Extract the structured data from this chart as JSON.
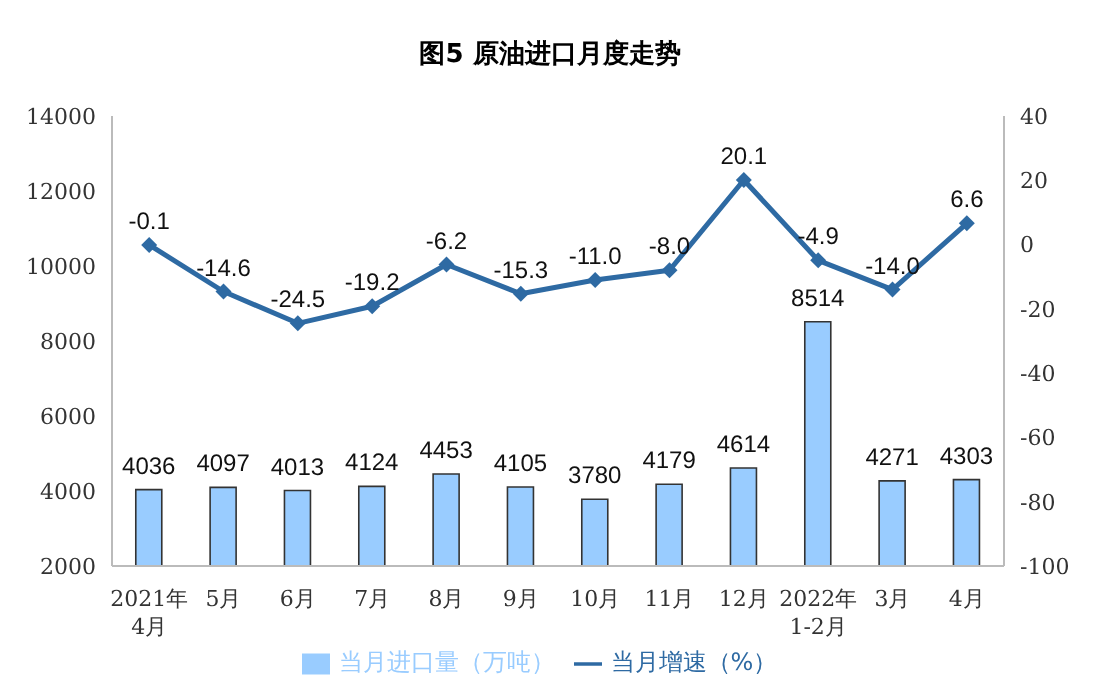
{
  "chart_data": {
    "type": "bar",
    "title": "图5  原油进口月度走势",
    "categories": [
      "2021年\n4月",
      "5月",
      "6月",
      "7月",
      "8月",
      "9月",
      "10月",
      "11月",
      "12月",
      "2022年\n1-2月",
      "3月",
      "4月"
    ],
    "series": [
      {
        "name": "当月进口量（万吨）",
        "color": "#99ccff",
        "values": [
          4036,
          4097,
          4013,
          4124,
          4453,
          4105,
          3780,
          4179,
          4614,
          8514,
          4271,
          4303
        ],
        "value_labels": [
          "4036",
          "4097",
          "4013",
          "4124",
          "4453",
          "4105",
          "3780",
          "4179",
          "4614",
          "8514",
          "4271",
          "4303"
        ]
      },
      {
        "name": "当月增速（%）",
        "type": "line",
        "axis": "y2",
        "color": "#2e6aa3",
        "values": [
          -0.1,
          -14.6,
          -24.5,
          -19.2,
          -6.2,
          -15.3,
          -11.0,
          -8.0,
          20.1,
          -4.9,
          -14.0,
          6.6
        ],
        "value_labels": [
          "-0.1",
          "-14.6",
          "-24.5",
          "-19.2",
          "-6.2",
          "-15.3",
          "-11.0",
          "-8.0",
          "20.1",
          "-4.9",
          "-14.0",
          "6.6"
        ]
      }
    ],
    "ylim": [
      2000,
      14000
    ],
    "yticks": [
      2000,
      4000,
      6000,
      8000,
      10000,
      12000,
      14000
    ],
    "y2lim": [
      -100,
      40
    ],
    "y2ticks": [
      -100,
      -80,
      -60,
      -40,
      -20,
      0,
      20,
      40
    ],
    "legend": "bottom",
    "grid": false,
    "marker": "diamond",
    "line_style": "solid"
  }
}
